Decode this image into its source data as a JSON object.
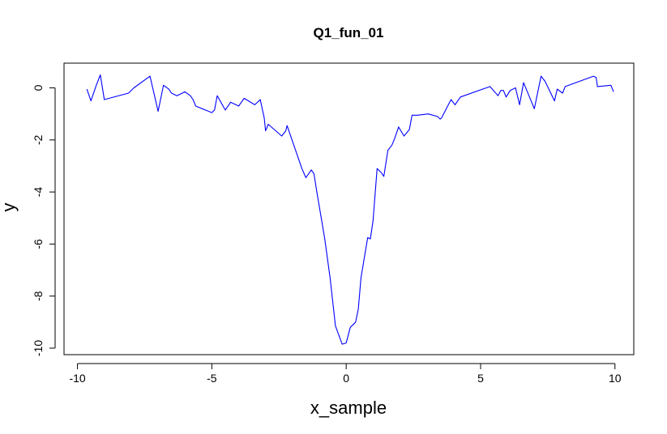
{
  "chart_data": {
    "type": "line",
    "title": "Q1_fun_01",
    "xlabel": "x_sample",
    "ylabel": "y",
    "xlim": [
      -10.5,
      10.7
    ],
    "ylim": [
      -10.25,
      0.95
    ],
    "x_ticks": [
      -10,
      -5,
      0,
      5,
      10
    ],
    "x_tick_labels": [
      "-10",
      "-5",
      "0",
      "5",
      "10"
    ],
    "y_ticks": [
      -10,
      -8,
      -6,
      -4,
      -2,
      0
    ],
    "y_tick_labels": [
      "-10",
      "-8",
      "-6",
      "-4",
      "-2",
      "0"
    ],
    "grid": false,
    "series_color": "#0000ff",
    "series": [
      {
        "x": [
          -9.65,
          -9.5,
          -9.3,
          -9.15,
          -9.0,
          -8.1,
          -7.9,
          -7.3,
          -7.0,
          -6.8,
          -6.6,
          -6.5,
          -6.3,
          -6.0,
          -5.8,
          -5.7,
          -5.6,
          -5.0,
          -4.9,
          -4.8,
          -4.5,
          -4.3,
          -4.0,
          -3.8,
          -3.4,
          -3.2,
          -3.05,
          -3.0,
          -2.9,
          -2.4,
          -2.25,
          -2.2,
          -1.65,
          -1.5,
          -1.3,
          -1.2,
          -1.1,
          -0.8,
          -0.6,
          -0.4,
          -0.15,
          0.0,
          0.15,
          0.35,
          0.45,
          0.55,
          0.8,
          0.9,
          1.0,
          1.15,
          1.3,
          1.4,
          1.55,
          1.7,
          1.8,
          1.95,
          2.15,
          2.35,
          2.45,
          2.55,
          2.65,
          3.05,
          3.4,
          3.5,
          3.55,
          3.9,
          4.05,
          4.25,
          5.35,
          5.65,
          5.75,
          5.85,
          5.95,
          6.1,
          6.3,
          6.45,
          6.6,
          6.8,
          7.0,
          7.25,
          7.4,
          7.75,
          7.85,
          8.05,
          8.15,
          9.2,
          9.3,
          9.35,
          9.85,
          9.95
        ],
        "values": [
          -0.05,
          -0.5,
          0.1,
          0.5,
          -0.45,
          -0.2,
          0.0,
          0.45,
          -0.9,
          0.1,
          -0.05,
          -0.2,
          -0.3,
          -0.15,
          -0.3,
          -0.45,
          -0.7,
          -0.95,
          -0.85,
          -0.3,
          -0.85,
          -0.55,
          -0.7,
          -0.4,
          -0.65,
          -0.45,
          -1.15,
          -1.65,
          -1.4,
          -1.85,
          -1.65,
          -1.45,
          -3.1,
          -3.45,
          -3.15,
          -3.3,
          -3.95,
          -5.8,
          -7.3,
          -9.15,
          -9.85,
          -9.8,
          -9.2,
          -9.0,
          -8.5,
          -7.3,
          -5.75,
          -5.8,
          -5.1,
          -3.1,
          -3.25,
          -3.4,
          -2.4,
          -2.2,
          -1.95,
          -1.5,
          -1.85,
          -1.6,
          -1.05,
          -1.05,
          -1.05,
          -1.0,
          -1.1,
          -1.2,
          -1.15,
          -0.45,
          -0.65,
          -0.35,
          0.05,
          -0.3,
          -0.1,
          -0.1,
          -0.35,
          -0.1,
          0.0,
          -0.65,
          0.2,
          -0.3,
          -0.8,
          0.45,
          0.25,
          -0.5,
          -0.05,
          -0.2,
          0.05,
          0.45,
          0.4,
          0.05,
          0.1,
          -0.15
        ]
      }
    ]
  }
}
